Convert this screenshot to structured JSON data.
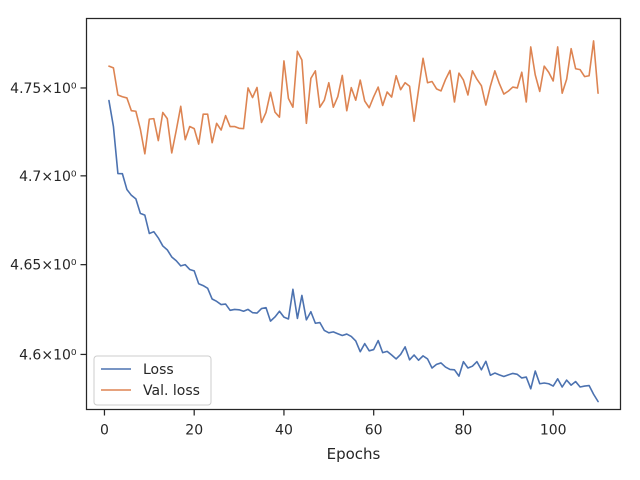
{
  "chart_data": {
    "type": "line",
    "title": "",
    "xlabel": "Epochs",
    "ylabel": "",
    "y_scale": "log",
    "xlim": [
      -4,
      115
    ],
    "ylim": [
      4.5696,
      4.7899
    ],
    "grid": false,
    "legend_position": "lower-left",
    "x_ticks": [
      0,
      20,
      40,
      60,
      80,
      100
    ],
    "x_tick_labels": [
      "0",
      "20",
      "40",
      "60",
      "80",
      "100"
    ],
    "y_ticks": [
      4.6,
      4.65,
      4.7,
      4.75
    ],
    "y_tick_labels": [
      "4.6×10⁰",
      "4.65×10⁰",
      "4.7×10⁰",
      "4.75×10⁰"
    ],
    "x": [
      1,
      2,
      3,
      4,
      5,
      6,
      7,
      8,
      9,
      10,
      11,
      12,
      13,
      14,
      15,
      16,
      17,
      18,
      19,
      20,
      21,
      22,
      23,
      24,
      25,
      26,
      27,
      28,
      29,
      30,
      31,
      32,
      33,
      34,
      35,
      36,
      37,
      38,
      39,
      40,
      41,
      42,
      43,
      44,
      45,
      46,
      47,
      48,
      49,
      50,
      51,
      52,
      53,
      54,
      55,
      56,
      57,
      58,
      59,
      60,
      61,
      62,
      63,
      64,
      65,
      66,
      67,
      68,
      69,
      70,
      71,
      72,
      73,
      74,
      75,
      76,
      77,
      78,
      79,
      80,
      81,
      82,
      83,
      84,
      85,
      86,
      87,
      88,
      89,
      90,
      91,
      92,
      93,
      94,
      95,
      96,
      97,
      98,
      99,
      100,
      101,
      102,
      103,
      104,
      105,
      106,
      107,
      108,
      109,
      110
    ],
    "series": [
      {
        "name": "Loss",
        "color": "#4c72b0",
        "values": [
          4.7428,
          4.728,
          4.7013,
          4.7012,
          4.6923,
          4.689,
          4.687,
          4.6788,
          4.6778,
          4.6675,
          4.6685,
          4.665,
          4.6605,
          4.6583,
          4.6543,
          4.6522,
          4.6493,
          4.65,
          4.6473,
          4.6465,
          4.6393,
          4.6383,
          4.6368,
          4.6308,
          4.6295,
          4.6277,
          4.628,
          4.6245,
          4.625,
          4.6248,
          4.624,
          4.625,
          4.6232,
          4.623,
          4.6255,
          4.626,
          4.6185,
          4.6208,
          4.624,
          4.6207,
          4.6197,
          4.6362,
          4.62,
          4.6328,
          4.6192,
          4.6237,
          4.6173,
          4.6177,
          4.6133,
          4.612,
          4.6125,
          4.6115,
          4.6105,
          4.6113,
          4.61,
          4.6075,
          4.6015,
          4.606,
          4.602,
          4.6027,
          4.6077,
          4.601,
          4.6017,
          4.5997,
          4.5975,
          4.6,
          4.6042,
          4.597,
          4.5997,
          4.5968,
          4.5992,
          4.5975,
          4.5925,
          4.5945,
          4.5953,
          4.593,
          4.5917,
          4.5915,
          4.588,
          4.596,
          4.5925,
          4.5935,
          4.596,
          4.5915,
          4.5962,
          4.5885,
          4.5897,
          4.5887,
          4.5878,
          4.5887,
          4.5895,
          4.589,
          4.587,
          4.5875,
          4.581,
          4.5908,
          4.5838,
          4.5842,
          4.5838,
          4.5825,
          4.5865,
          4.582,
          4.5858,
          4.583,
          4.585,
          4.582,
          4.5825,
          4.5828,
          4.578,
          4.574
        ]
      },
      {
        "name": "Val. loss",
        "color": "#dd8452",
        "values": [
          4.7625,
          4.7615,
          4.746,
          4.745,
          4.7443,
          4.737,
          4.7367,
          4.7265,
          4.7125,
          4.7322,
          4.7325,
          4.72,
          4.736,
          4.7325,
          4.713,
          4.7258,
          4.7395,
          4.7205,
          4.728,
          4.7268,
          4.718,
          4.735,
          4.735,
          4.7188,
          4.7298,
          4.726,
          4.7342,
          4.728,
          4.728,
          4.727,
          4.7268,
          4.75,
          4.7445,
          4.7503,
          4.7303,
          4.736,
          4.7475,
          4.7362,
          4.7333,
          4.7655,
          4.744,
          4.739,
          4.771,
          4.766,
          4.7298,
          4.7555,
          4.7598,
          4.739,
          4.743,
          4.753,
          4.739,
          4.745,
          4.7572,
          4.737,
          4.7502,
          4.743,
          4.7545,
          4.7425,
          4.7387,
          4.745,
          4.7505,
          4.74,
          4.7477,
          4.7448,
          4.757,
          4.749,
          4.753,
          4.751,
          4.731,
          4.749,
          4.767,
          4.753,
          4.7537,
          4.7495,
          4.7483,
          4.7548,
          4.76,
          4.742,
          4.7585,
          4.7545,
          4.746,
          4.7598,
          4.755,
          4.7513,
          4.7402,
          4.751,
          4.7598,
          4.7525,
          4.7465,
          4.7482,
          4.7505,
          4.75,
          4.759,
          4.742,
          4.7735,
          4.7575,
          4.748,
          4.7625,
          4.759,
          4.754,
          4.7735,
          4.747,
          4.755,
          4.7725,
          4.761,
          4.7605,
          4.7565,
          4.757,
          4.777,
          4.747
        ]
      }
    ]
  }
}
